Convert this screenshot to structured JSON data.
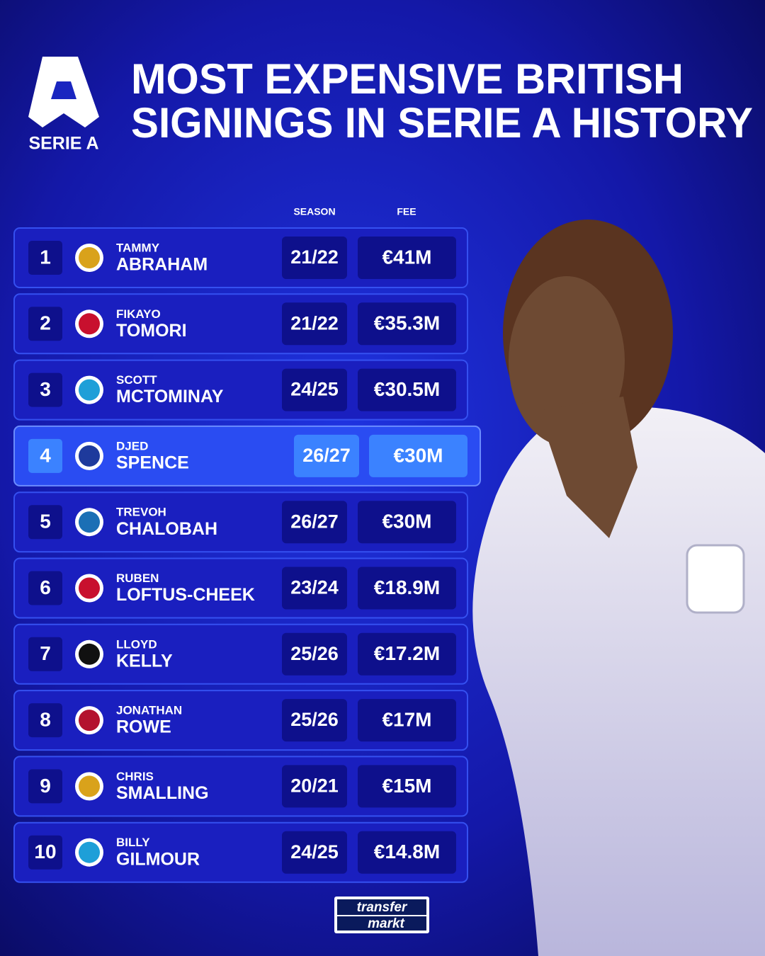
{
  "header": {
    "logo": "SERIE A",
    "title": [
      "MOST EXPENSIVE BRITISH",
      "SIGNINGS IN SERIE A HISTORY"
    ]
  },
  "table": {
    "columns": [
      "SEASON",
      "FEE"
    ],
    "highlight": 3,
    "rows": [
      {
        "rank": 1,
        "first": "TAMMY",
        "last": "ABRAHAM",
        "season": "21/22",
        "fee": "€41M"
      },
      {
        "rank": 2,
        "first": "FIKAYO",
        "last": "TOMORI",
        "season": "21/22",
        "fee": "€35.3M"
      },
      {
        "rank": 3,
        "first": "SCOTT",
        "last": "MCTOMINAY",
        "season": "24/25",
        "fee": "€30.5M"
      },
      {
        "rank": 4,
        "first": "DJED",
        "last": "SPENCE",
        "season": "26/27",
        "fee": "€30M"
      },
      {
        "rank": 5,
        "first": "TREVOH",
        "last": "CHALOBAH",
        "season": "26/27",
        "fee": "€30M"
      },
      {
        "rank": 6,
        "first": "RUBEN",
        "last": "LOFTUS-CHEEK",
        "season": "23/24",
        "fee": "€18.9M"
      },
      {
        "rank": 7,
        "first": "LLOYD",
        "last": "KELLY",
        "season": "25/26",
        "fee": "€17.2M"
      },
      {
        "rank": 8,
        "first": "JONATHAN",
        "last": "ROWE",
        "season": "25/26",
        "fee": "€17M"
      },
      {
        "rank": 9,
        "first": "CHRIS",
        "last": "SMALLING",
        "season": "20/21",
        "fee": "€15M"
      },
      {
        "rank": 10,
        "first": "BILLY",
        "last": "GILMOUR",
        "season": "24/25",
        "fee": "€14.8M"
      }
    ]
  },
  "footer": {
    "logo": [
      "transfer",
      "markt"
    ]
  }
}
